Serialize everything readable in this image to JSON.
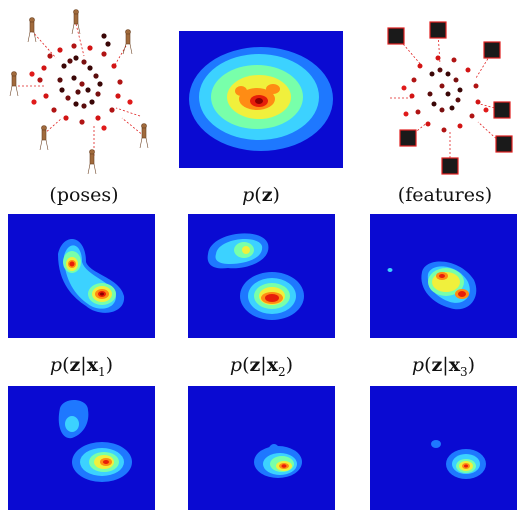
{
  "figure": {
    "row1_captions": {
      "poses": "(poses)",
      "pz_italic": "p",
      "pz_bold": "z",
      "features": "(features)"
    },
    "row2_captions": [
      {
        "italic": "p",
        "bold": "z",
        "bar": "|",
        "bold2": "x",
        "sub": "1"
      },
      {
        "italic": "p",
        "bold": "z",
        "bar": "|",
        "bold2": "x",
        "sub": "2"
      },
      {
        "italic": "p",
        "bold": "z",
        "bar": "|",
        "bold2": "x",
        "sub": "3"
      }
    ]
  },
  "colors": {
    "heatmap_background": "#0a0ad2",
    "level_1": "#1e78ff",
    "level_2": "#3cd2ff",
    "level_3": "#78ffaa",
    "level_4": "#f0f03c",
    "level_5": "#ff8c14",
    "level_6": "#e61e0a",
    "level_7": "#8c0000",
    "scatter_dark": "#3a0606",
    "scatter_red": "#d21414",
    "connector": "#e02020"
  }
}
